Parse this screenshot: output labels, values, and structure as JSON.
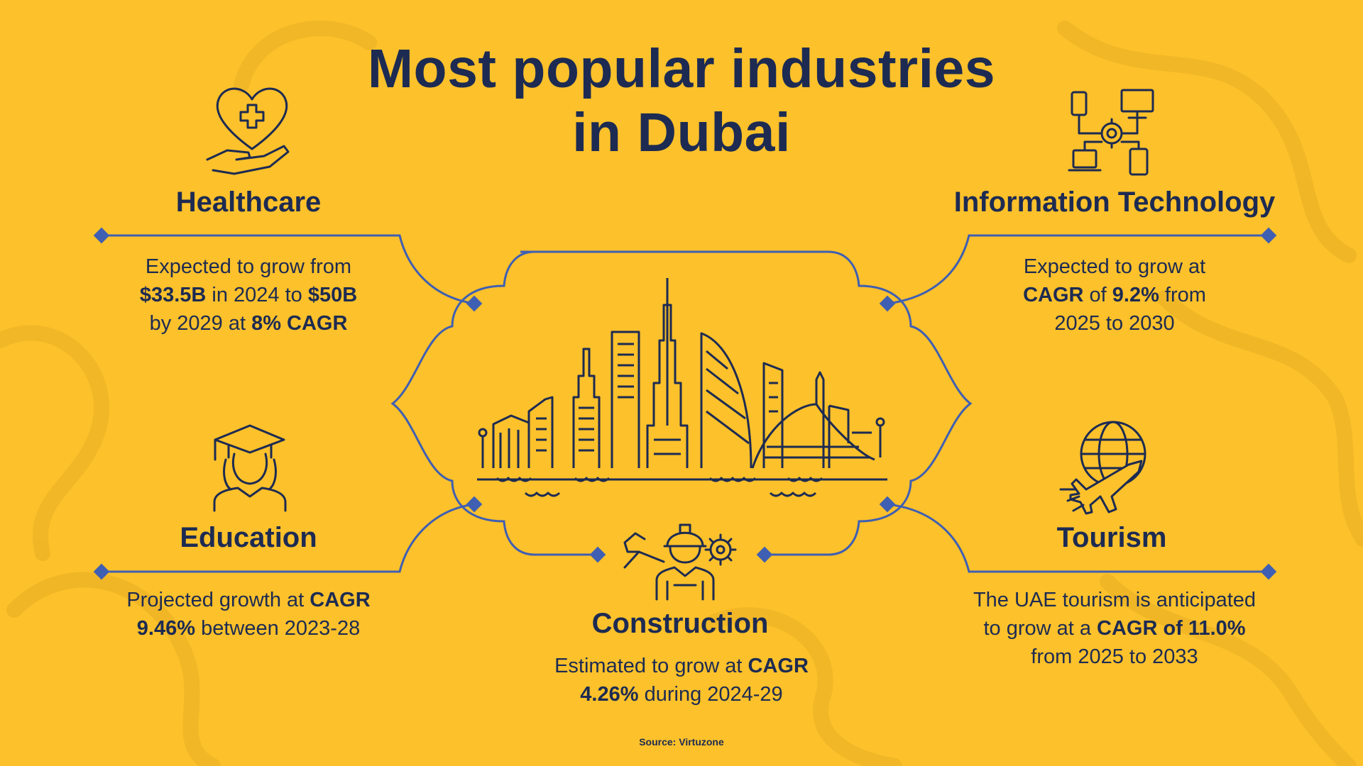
{
  "title": {
    "line1": "Most popular industries",
    "line2": "in Dubai"
  },
  "colors": {
    "background": "#FCC12B",
    "text": "#1D2B52",
    "line": "#3F5FB2"
  },
  "industries": {
    "healthcare": {
      "heading": "Healthcare",
      "icon": "heart-hand-plus-icon",
      "lines": [
        [
          "Expected to grow from",
          ""
        ],
        [
          "$33.5B",
          " in 2024 to ",
          "$50B"
        ],
        [
          "by 2029 at ",
          "8% CAGR"
        ]
      ]
    },
    "it": {
      "heading": "Information Technology",
      "icon": "network-devices-gear-icon",
      "lines": [
        [
          "Expected to grow at",
          ""
        ],
        [
          "CAGR",
          " of ",
          "9.2%",
          " from"
        ],
        [
          "2025 to 2030",
          ""
        ]
      ]
    },
    "education": {
      "heading": "Education",
      "icon": "graduate-icon",
      "lines": [
        [
          "Projected growth at ",
          "CAGR"
        ],
        [
          "9.46%",
          " between 2023-28"
        ]
      ]
    },
    "tourism": {
      "heading": "Tourism",
      "icon": "globe-airplane-icon",
      "lines": [
        [
          "The UAE tourism is anticipated",
          ""
        ],
        [
          "to grow at a ",
          "CAGR of 11.0%"
        ],
        [
          "from 2025 to 2033",
          ""
        ]
      ]
    },
    "construction": {
      "heading": "Construction",
      "icon": "construction-worker-icon",
      "lines": [
        [
          "Estimated to grow at ",
          "CAGR"
        ],
        [
          "4.26%",
          " during 2024-29"
        ]
      ]
    }
  },
  "center_icon": "dubai-skyline-icon",
  "source": "Source: Virtuzone"
}
